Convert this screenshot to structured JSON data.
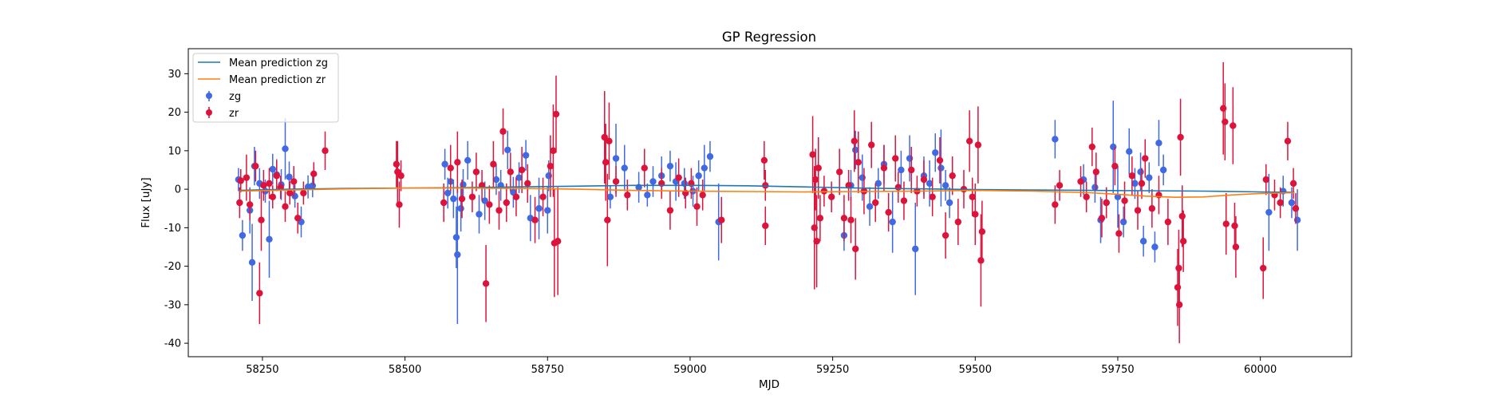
{
  "chart_data": {
    "type": "scatter",
    "title": "GP Regression",
    "xlabel": "MJD",
    "ylabel": "Flux [uJy]",
    "xlim": [
      58120,
      60160
    ],
    "ylim": [
      -43.5,
      36.5
    ],
    "xticks": [
      58250,
      58500,
      58750,
      59000,
      59250,
      59500,
      59750,
      60000
    ],
    "yticks": [
      -40,
      -30,
      -20,
      -10,
      0,
      10,
      20,
      30
    ],
    "grid": false,
    "legend_position": "upper-left",
    "legend": [
      "Mean prediction zg",
      "Mean prediction zr",
      "zg",
      "zr"
    ],
    "lines": [
      {
        "name": "Mean prediction zg",
        "color": "#1f77b4",
        "x": [
          58210,
          58300,
          58400,
          58500,
          58600,
          58700,
          58800,
          58900,
          59000,
          59100,
          59200,
          59300,
          59400,
          59500,
          59600,
          59700,
          59800,
          59900,
          60000,
          60060
        ],
        "y": [
          -0.3,
          0.0,
          0.2,
          0.3,
          0.4,
          0.6,
          0.8,
          1.0,
          1.0,
          0.9,
          0.6,
          0.3,
          0.1,
          -0.1,
          -0.2,
          -0.3,
          -0.4,
          -0.5,
          -0.7,
          -0.8
        ]
      },
      {
        "name": "Mean prediction zr",
        "color": "#ff7f0e",
        "x": [
          58210,
          58300,
          58400,
          58500,
          58600,
          58700,
          58800,
          58900,
          59000,
          59100,
          59200,
          59300,
          59400,
          59500,
          59600,
          59700,
          59760,
          59800,
          59850,
          59900,
          59950,
          60000,
          60060
        ],
        "y": [
          -0.5,
          -0.2,
          0.1,
          0.3,
          0.3,
          0.2,
          0.0,
          -0.3,
          -0.5,
          -0.6,
          -0.7,
          -0.6,
          -0.5,
          -0.3,
          -0.5,
          -0.9,
          -1.4,
          -1.8,
          -2.1,
          -2.0,
          -1.5,
          -1.1,
          -0.9
        ]
      }
    ],
    "series": [
      {
        "name": "zg",
        "color": "#4169e1",
        "points": [
          [
            58208,
            2.5,
            3
          ],
          [
            58215,
            -12,
            4
          ],
          [
            58228,
            -5.5,
            6
          ],
          [
            58232,
            -19,
            10
          ],
          [
            58236,
            6,
            5
          ],
          [
            58245,
            1.5,
            4
          ],
          [
            58255,
            -0.5,
            3
          ],
          [
            58262,
            -13,
            10
          ],
          [
            58268,
            5.2,
            4
          ],
          [
            58275,
            3.8,
            4
          ],
          [
            58283,
            1.2,
            4
          ],
          [
            58290,
            10.5,
            8
          ],
          [
            58297,
            3.2,
            4
          ],
          [
            58307,
            -1.8,
            3
          ],
          [
            58318,
            -8.5,
            4
          ],
          [
            58330,
            0.6,
            3
          ],
          [
            58338,
            0.9,
            3
          ],
          [
            58570,
            6.5,
            4
          ],
          [
            58575,
            -1.0,
            4
          ],
          [
            58580,
            2.0,
            3
          ],
          [
            58585,
            -2.5,
            5
          ],
          [
            58590,
            -12.5,
            8
          ],
          [
            58592,
            -17,
            18
          ],
          [
            58598,
            -5.0,
            6
          ],
          [
            58602,
            1.2,
            4
          ],
          [
            58610,
            7.5,
            5
          ],
          [
            58630,
            -6.5,
            5
          ],
          [
            58640,
            -3.0,
            5
          ],
          [
            58660,
            2.5,
            4
          ],
          [
            58668,
            1.0,
            4
          ],
          [
            58680,
            10.2,
            5
          ],
          [
            58690,
            -0.8,
            4
          ],
          [
            58700,
            3.0,
            4
          ],
          [
            58712,
            8.8,
            4
          ],
          [
            58720,
            -7.5,
            6
          ],
          [
            58735,
            -5.0,
            8
          ],
          [
            58750,
            -5.5,
            6
          ],
          [
            58752,
            3.5,
            4
          ],
          [
            58860,
            -2.0,
            3
          ],
          [
            58870,
            8.0,
            9
          ],
          [
            58885,
            5.5,
            6
          ],
          [
            58910,
            0.5,
            4
          ],
          [
            58925,
            -1.5,
            3
          ],
          [
            58935,
            2.0,
            4
          ],
          [
            58950,
            3.5,
            5
          ],
          [
            58965,
            6.0,
            4
          ],
          [
            58975,
            2.0,
            5
          ],
          [
            58990,
            1.5,
            4
          ],
          [
            59005,
            -0.5,
            4
          ],
          [
            59015,
            3.5,
            4
          ],
          [
            59025,
            5.5,
            6
          ],
          [
            59035,
            8.5,
            4
          ],
          [
            59050,
            -8.5,
            10
          ],
          [
            59270,
            -12,
            4
          ],
          [
            59282,
            1.0,
            4
          ],
          [
            59290,
            10.2,
            5
          ],
          [
            59302,
            3.0,
            6
          ],
          [
            59315,
            -4.5,
            5
          ],
          [
            59330,
            1.5,
            4
          ],
          [
            59340,
            6.5,
            5
          ],
          [
            59355,
            -8.5,
            8
          ],
          [
            59370,
            5.0,
            5
          ],
          [
            59385,
            8.0,
            6
          ],
          [
            59395,
            -15.5,
            12
          ],
          [
            59410,
            3.5,
            5
          ],
          [
            59420,
            1.5,
            6
          ],
          [
            59430,
            9.5,
            5
          ],
          [
            59440,
            5.5,
            10
          ],
          [
            59448,
            1.0,
            4
          ],
          [
            59455,
            -3.5,
            4
          ],
          [
            59640,
            13,
            5
          ],
          [
            59690,
            2.5,
            4
          ],
          [
            59710,
            0.5,
            4
          ],
          [
            59720,
            -8.0,
            6
          ],
          [
            59730,
            -3.5,
            4
          ],
          [
            59742,
            11.0,
            12
          ],
          [
            59750,
            -2.0,
            8
          ],
          [
            59760,
            -8.5,
            4
          ],
          [
            59770,
            9.8,
            6
          ],
          [
            59780,
            1.5,
            4
          ],
          [
            59790,
            4.5,
            5
          ],
          [
            59795,
            -13.5,
            4
          ],
          [
            59805,
            3.0,
            4
          ],
          [
            59815,
            -15,
            4
          ],
          [
            59822,
            12.0,
            6
          ],
          [
            59830,
            5.0,
            4
          ],
          [
            60015,
            -6.0,
            10
          ],
          [
            60040,
            -0.5,
            4
          ],
          [
            60055,
            -3.5,
            4
          ],
          [
            60065,
            -8.0,
            8
          ]
        ]
      },
      {
        "name": "zr",
        "color": "#dc143c",
        "points": [
          [
            58210,
            -3.5,
            4
          ],
          [
            58212,
            2.2,
            3
          ],
          [
            58222,
            3.0,
            6
          ],
          [
            58228,
            -4.0,
            4
          ],
          [
            58238,
            6.0,
            4
          ],
          [
            58245,
            -27,
            8
          ],
          [
            58248,
            -8.0,
            8
          ],
          [
            58252,
            1.0,
            4
          ],
          [
            58262,
            1.5,
            4
          ],
          [
            58268,
            -2.0,
            3
          ],
          [
            58275,
            3.5,
            4
          ],
          [
            58282,
            0.5,
            3
          ],
          [
            58290,
            -4.5,
            4
          ],
          [
            58298,
            -1.0,
            3
          ],
          [
            58305,
            2.0,
            4
          ],
          [
            58312,
            -7.5,
            4
          ],
          [
            58322,
            -1.0,
            3
          ],
          [
            58340,
            4.0,
            3
          ],
          [
            58360,
            10.0,
            5
          ],
          [
            58485,
            6.5,
            6
          ],
          [
            58487,
            4.5,
            8
          ],
          [
            58490,
            -4.0,
            6
          ],
          [
            58493,
            3.5,
            4
          ],
          [
            58568,
            -3.5,
            5
          ],
          [
            58580,
            5.5,
            6
          ],
          [
            58592,
            7.0,
            8
          ],
          [
            58600,
            -2.5,
            5
          ],
          [
            58618,
            -2.0,
            4
          ],
          [
            58625,
            4.5,
            5
          ],
          [
            58635,
            1.0,
            4
          ],
          [
            58642,
            -24.5,
            10
          ],
          [
            58648,
            -4.0,
            5
          ],
          [
            58655,
            6.5,
            6
          ],
          [
            58665,
            -5.5,
            5
          ],
          [
            58672,
            15.0,
            6
          ],
          [
            58678,
            -3.5,
            5
          ],
          [
            58685,
            4.5,
            5
          ],
          [
            58695,
            -2.0,
            5
          ],
          [
            58705,
            5.0,
            6
          ],
          [
            58715,
            1.5,
            5
          ],
          [
            58728,
            -8.0,
            6
          ],
          [
            58742,
            -2.0,
            5
          ],
          [
            58755,
            6.0,
            8
          ],
          [
            58760,
            10.0,
            12
          ],
          [
            58762,
            -14.0,
            14
          ],
          [
            58765,
            19.5,
            10
          ],
          [
            58768,
            -13.5,
            14
          ],
          [
            58850,
            13.5,
            12
          ],
          [
            58852,
            7.0,
            10
          ],
          [
            58855,
            -8.0,
            12
          ],
          [
            58858,
            12.5,
            10
          ],
          [
            58870,
            2.0,
            4
          ],
          [
            58890,
            -1.5,
            4
          ],
          [
            58920,
            5.5,
            5
          ],
          [
            58950,
            1.5,
            4
          ],
          [
            58965,
            -5.5,
            5
          ],
          [
            58980,
            3.0,
            5
          ],
          [
            58992,
            -1.0,
            4
          ],
          [
            59002,
            1.5,
            4
          ],
          [
            59012,
            -4.5,
            5
          ],
          [
            59022,
            -1.5,
            4
          ],
          [
            59055,
            -8.0,
            6
          ],
          [
            59130,
            7.5,
            5
          ],
          [
            59132,
            -9.5,
            5
          ],
          [
            59132,
            1.0,
            4
          ],
          [
            59215,
            9.0,
            10
          ],
          [
            59218,
            -10.0,
            16
          ],
          [
            59220,
            2.5,
            8
          ],
          [
            59222,
            -13.5,
            12
          ],
          [
            59225,
            5.5,
            8
          ],
          [
            59228,
            -7.5,
            6
          ],
          [
            59235,
            -0.5,
            4
          ],
          [
            59248,
            -2.0,
            4
          ],
          [
            59262,
            4.5,
            6
          ],
          [
            59270,
            -7.5,
            6
          ],
          [
            59278,
            1.0,
            4
          ],
          [
            59282,
            -8.0,
            6
          ],
          [
            59288,
            12.5,
            8
          ],
          [
            59290,
            -15.5,
            8
          ],
          [
            59295,
            7.0,
            8
          ],
          [
            59305,
            -0.5,
            6
          ],
          [
            59318,
            11.5,
            6
          ],
          [
            59325,
            -3.5,
            5
          ],
          [
            59340,
            5.5,
            6
          ],
          [
            59348,
            -6.0,
            5
          ],
          [
            59360,
            8.0,
            6
          ],
          [
            59365,
            0.5,
            4
          ],
          [
            59375,
            -3.0,
            5
          ],
          [
            59388,
            5.0,
            6
          ],
          [
            59398,
            -0.5,
            4
          ],
          [
            59410,
            2.5,
            5
          ],
          [
            59425,
            -2.0,
            5
          ],
          [
            59438,
            7.5,
            6
          ],
          [
            59448,
            -12.0,
            6
          ],
          [
            59460,
            3.5,
            5
          ],
          [
            59470,
            -8.5,
            6
          ],
          [
            59480,
            0.0,
            5
          ],
          [
            59490,
            12.5,
            8
          ],
          [
            59495,
            -2.0,
            5
          ],
          [
            59500,
            -6.5,
            8
          ],
          [
            59505,
            11.5,
            10
          ],
          [
            59510,
            -18.5,
            12
          ],
          [
            59512,
            -11.0,
            8
          ],
          [
            59640,
            -4.0,
            5
          ],
          [
            59648,
            1.0,
            4
          ],
          [
            59685,
            2.0,
            4
          ],
          [
            59695,
            -2.0,
            4
          ],
          [
            59705,
            11.0,
            5
          ],
          [
            59712,
            4.5,
            5
          ],
          [
            59722,
            -7.5,
            5
          ],
          [
            59730,
            -3.5,
            4
          ],
          [
            59745,
            6.0,
            5
          ],
          [
            59752,
            -11.5,
            5
          ],
          [
            59762,
            -3.0,
            5
          ],
          [
            59775,
            3.5,
            5
          ],
          [
            59785,
            -5.5,
            5
          ],
          [
            59792,
            1.5,
            4
          ],
          [
            59798,
            8.0,
            5
          ],
          [
            59810,
            -5.0,
            5
          ],
          [
            59822,
            -1.5,
            5
          ],
          [
            59838,
            -8.5,
            6
          ],
          [
            59855,
            -25.5,
            10
          ],
          [
            59857,
            -20.5,
            10
          ],
          [
            59858,
            -30.0,
            10
          ],
          [
            59860,
            13.5,
            10
          ],
          [
            59863,
            -7.0,
            8
          ],
          [
            59865,
            -13.5,
            8
          ],
          [
            59935,
            21.0,
            12
          ],
          [
            59938,
            17.5,
            10
          ],
          [
            59940,
            -9.0,
            8
          ],
          [
            59952,
            16.5,
            10
          ],
          [
            59955,
            -9.5,
            6
          ],
          [
            59957,
            -15.0,
            8
          ],
          [
            60005,
            -20.5,
            8
          ],
          [
            60010,
            2.5,
            4
          ],
          [
            60025,
            -1.5,
            4
          ],
          [
            60035,
            -3.5,
            4
          ],
          [
            60048,
            12.5,
            5
          ],
          [
            60058,
            1.5,
            4
          ],
          [
            60062,
            -5.0,
            4
          ]
        ]
      }
    ]
  }
}
